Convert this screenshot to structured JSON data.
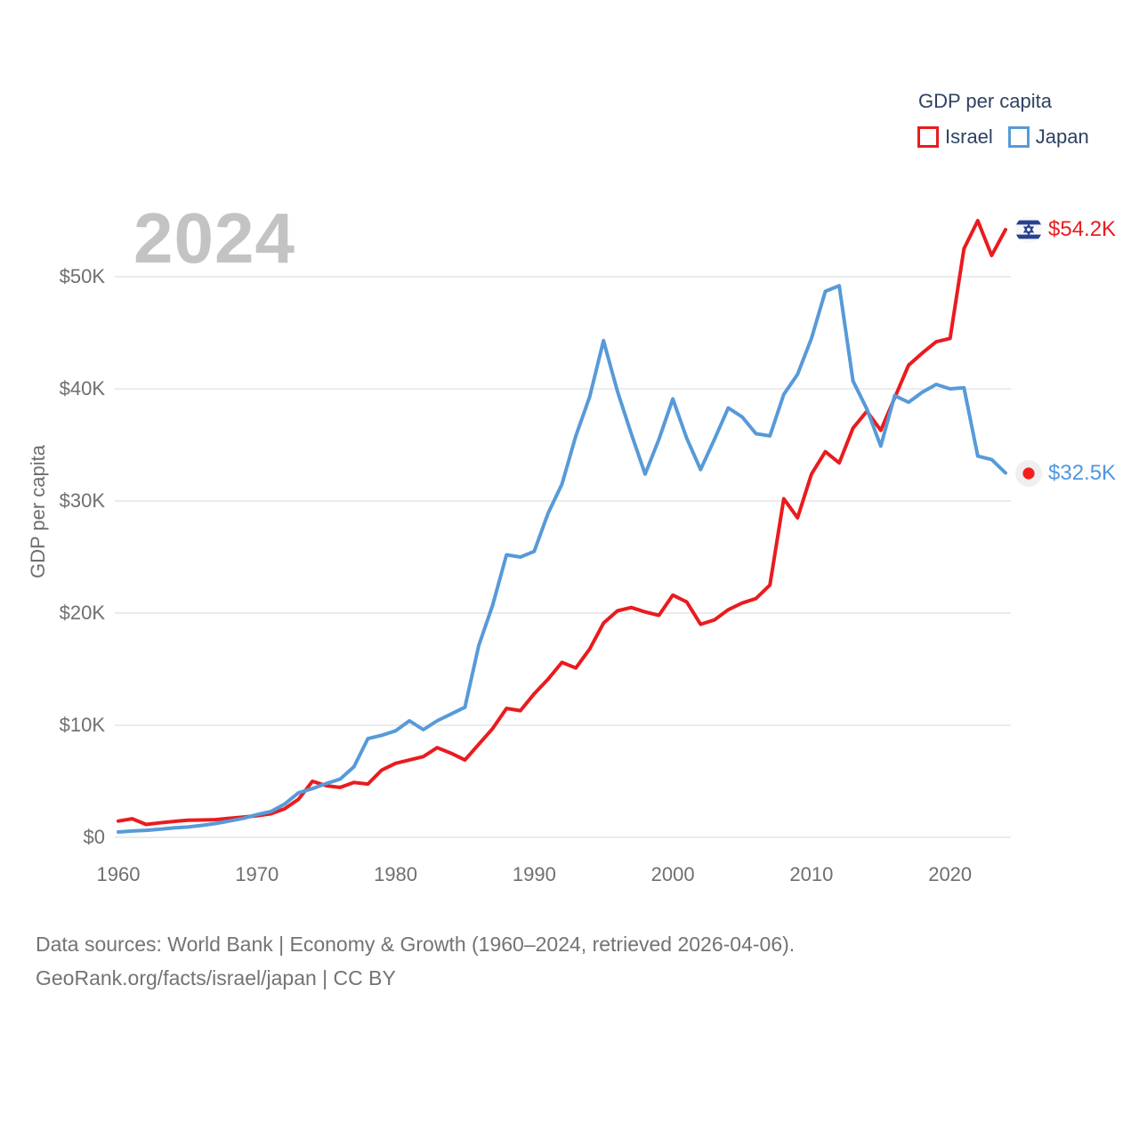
{
  "watermark": "2024",
  "legend": {
    "title": "GDP per capita",
    "items": [
      {
        "label": "Israel",
        "color": "#ea1b1e"
      },
      {
        "label": "Japan",
        "color": "#579ad8"
      }
    ]
  },
  "axes": {
    "y_title": "GDP per capita"
  },
  "end_labels": [
    {
      "series": "Israel",
      "text": "$54.2K",
      "color": "#ea1b1e",
      "flag": "israel-flag"
    },
    {
      "series": "Japan",
      "text": "$32.5K",
      "color": "#4f97e0",
      "flag": "japan-flag"
    }
  ],
  "footer": {
    "line1": "Data sources: World Bank | Economy & Growth (1960–2024, retrieved 2026-04-06).",
    "line2": "GeoRank.org/facts/israel/japan | CC BY"
  },
  "chart_data": {
    "type": "line",
    "title": "GDP per capita",
    "xlabel": "",
    "ylabel": "GDP per capita",
    "units": "thousand US$ per person",
    "grid": "horizontal",
    "legend_position": "top-right",
    "xlim": [
      1960,
      2024
    ],
    "ylim": [
      0,
      56
    ],
    "x": [
      1960,
      1961,
      1962,
      1963,
      1964,
      1965,
      1966,
      1967,
      1968,
      1969,
      1970,
      1971,
      1972,
      1973,
      1974,
      1975,
      1976,
      1977,
      1978,
      1979,
      1980,
      1981,
      1982,
      1983,
      1984,
      1985,
      1986,
      1987,
      1988,
      1989,
      1990,
      1991,
      1992,
      1993,
      1994,
      1995,
      1996,
      1997,
      1998,
      1999,
      2000,
      2001,
      2002,
      2003,
      2004,
      2005,
      2006,
      2007,
      2008,
      2009,
      2010,
      2011,
      2012,
      2013,
      2014,
      2015,
      2016,
      2017,
      2018,
      2019,
      2020,
      2021,
      2022,
      2023,
      2024
    ],
    "series": [
      {
        "name": "Israel",
        "color": "#ea1b1e",
        "values": [
          1.45,
          1.66,
          1.15,
          1.29,
          1.42,
          1.52,
          1.55,
          1.58,
          1.7,
          1.8,
          1.92,
          2.1,
          2.55,
          3.4,
          5.0,
          4.6,
          4.45,
          4.9,
          4.75,
          6.0,
          6.6,
          6.9,
          7.2,
          8.0,
          7.5,
          6.9,
          8.3,
          9.7,
          11.5,
          11.3,
          12.8,
          14.1,
          15.6,
          15.1,
          16.8,
          19.1,
          20.2,
          20.5,
          20.1,
          19.8,
          21.6,
          21.0,
          19.0,
          19.4,
          20.3,
          20.9,
          21.3,
          22.5,
          30.2,
          28.5,
          32.4,
          34.4,
          33.4,
          36.5,
          38.0,
          36.3,
          39.2,
          42.1,
          43.2,
          44.2,
          44.5,
          52.5,
          55.0,
          51.9,
          54.2
        ]
      },
      {
        "name": "Japan",
        "color": "#579ad8",
        "values": [
          0.48,
          0.56,
          0.63,
          0.72,
          0.84,
          0.92,
          1.06,
          1.23,
          1.45,
          1.69,
          2.03,
          2.3,
          2.97,
          3.98,
          4.35,
          4.8,
          5.2,
          6.3,
          8.8,
          9.1,
          9.5,
          10.4,
          9.6,
          10.4,
          11.0,
          11.6,
          17.1,
          20.7,
          25.2,
          25.0,
          25.5,
          28.9,
          31.5,
          35.8,
          39.3,
          44.3,
          39.8,
          36.0,
          32.4,
          35.5,
          39.1,
          35.6,
          32.8,
          35.5,
          38.3,
          37.5,
          36.0,
          35.8,
          39.5,
          41.3,
          44.5,
          48.7,
          49.2,
          40.7,
          38.2,
          34.9,
          39.4,
          38.8,
          39.7,
          40.4,
          40.0,
          40.1,
          34.0,
          33.7,
          32.5
        ]
      }
    ],
    "yticks": [
      {
        "value": 0,
        "label": "$0"
      },
      {
        "value": 10,
        "label": "$10K"
      },
      {
        "value": 20,
        "label": "$20K"
      },
      {
        "value": 30,
        "label": "$30K"
      },
      {
        "value": 40,
        "label": "$40K"
      },
      {
        "value": 50,
        "label": "$50K"
      }
    ],
    "xticks": [
      {
        "value": 1960,
        "label": "1960"
      },
      {
        "value": 1970,
        "label": "1970"
      },
      {
        "value": 1980,
        "label": "1980"
      },
      {
        "value": 1990,
        "label": "1990"
      },
      {
        "value": 2000,
        "label": "2000"
      },
      {
        "value": 2010,
        "label": "2010"
      },
      {
        "value": 2020,
        "label": "2020"
      }
    ],
    "end_labels": {
      "Israel": "$54.2K",
      "Japan": "$32.5K"
    }
  }
}
